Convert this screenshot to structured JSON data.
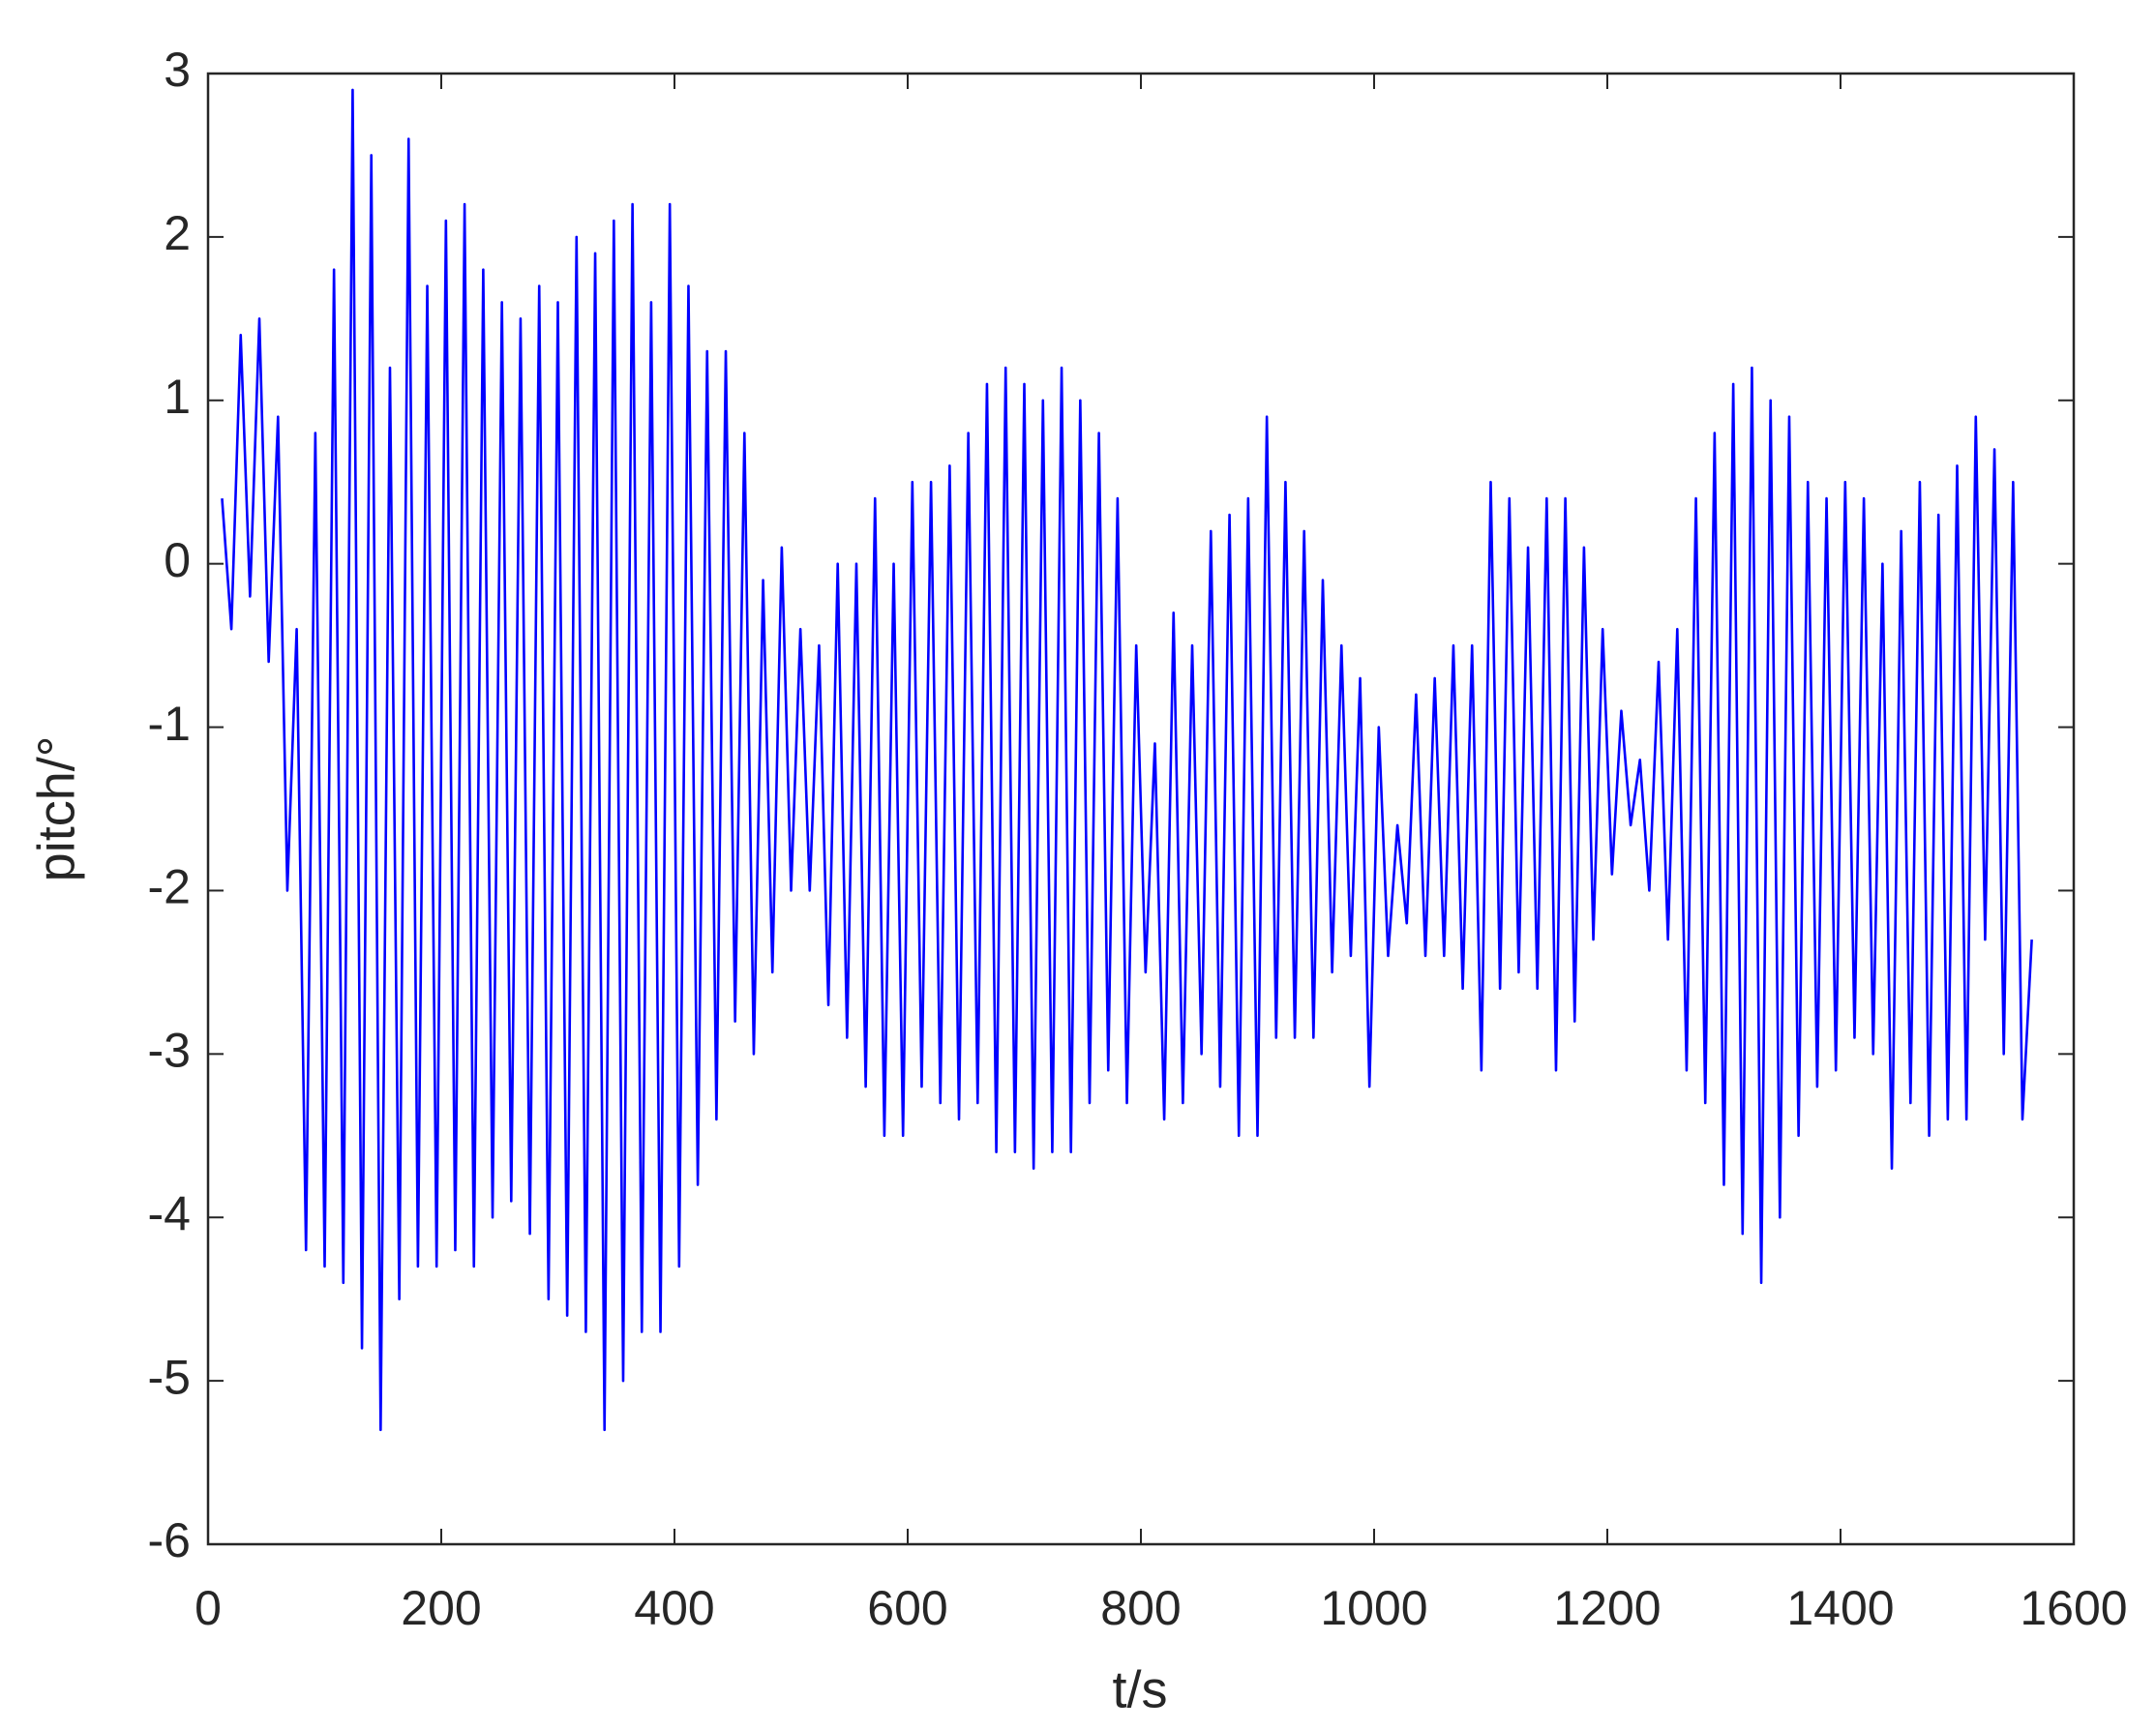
{
  "chart_data": {
    "type": "line",
    "xlabel": "t/s",
    "ylabel": "pitch/°",
    "color": "#0000ff",
    "xlim": [
      0,
      1600
    ],
    "xticks": [
      0,
      200,
      400,
      600,
      800,
      1000,
      1200,
      1400,
      1600
    ],
    "ylim": [
      -6,
      3
    ],
    "yticks": [
      -6,
      -5,
      -4,
      -3,
      -2,
      -1,
      0,
      1,
      2,
      3
    ],
    "grid": false,
    "x": [
      12,
      20,
      28,
      36,
      44,
      52,
      60,
      68,
      76,
      84,
      92,
      100,
      108,
      116,
      124,
      132,
      140,
      148,
      156,
      164,
      172,
      180,
      188,
      196,
      204,
      212,
      220,
      228,
      236,
      244,
      252,
      260,
      268,
      276,
      284,
      292,
      300,
      308,
      316,
      324,
      332,
      340,
      348,
      356,
      364,
      372,
      380,
      388,
      396,
      404,
      412,
      420,
      428,
      436,
      444,
      452,
      460,
      468,
      476,
      484,
      492,
      500,
      508,
      516,
      524,
      532,
      540,
      548,
      556,
      564,
      572,
      580,
      588,
      596,
      604,
      612,
      620,
      628,
      636,
      644,
      652,
      660,
      668,
      676,
      684,
      692,
      700,
      708,
      716,
      724,
      732,
      740,
      748,
      756,
      764,
      772,
      780,
      788,
      796,
      804,
      812,
      820,
      828,
      836,
      844,
      852,
      860,
      868,
      876,
      884,
      892,
      900,
      908,
      916,
      924,
      932,
      940,
      948,
      956,
      964,
      972,
      980,
      988,
      996,
      1004,
      1012,
      1020,
      1028,
      1036,
      1044,
      1052,
      1060,
      1068,
      1076,
      1084,
      1092,
      1100,
      1108,
      1116,
      1124,
      1132,
      1140,
      1148,
      1156,
      1164,
      1172,
      1180,
      1188,
      1196,
      1204,
      1212,
      1220,
      1228,
      1236,
      1244,
      1252,
      1260,
      1268,
      1276,
      1284,
      1292,
      1300,
      1308,
      1316,
      1324,
      1332,
      1340,
      1348,
      1356,
      1364,
      1372,
      1380,
      1388,
      1396,
      1404,
      1412,
      1420,
      1428,
      1436,
      1444,
      1452,
      1460,
      1468,
      1476,
      1484,
      1492,
      1500,
      1508,
      1516,
      1524,
      1532,
      1540,
      1548,
      1556,
      1564
    ],
    "values": [
      0.4,
      -0.4,
      1.4,
      -0.2,
      1.5,
      -0.6,
      0.9,
      -2.0,
      -0.4,
      -4.2,
      0.8,
      -4.3,
      1.8,
      -4.4,
      2.9,
      -4.8,
      2.5,
      -5.3,
      1.2,
      -4.5,
      2.6,
      -4.3,
      1.7,
      -4.3,
      2.1,
      -4.2,
      2.2,
      -4.3,
      1.8,
      -4.0,
      1.6,
      -3.9,
      1.5,
      -4.1,
      1.7,
      -4.5,
      1.6,
      -4.6,
      2.0,
      -4.7,
      1.9,
      -5.3,
      2.1,
      -5.0,
      2.2,
      -4.7,
      1.6,
      -4.7,
      2.2,
      -4.3,
      1.7,
      -3.8,
      1.3,
      -3.4,
      1.3,
      -2.8,
      0.8,
      -3.0,
      -0.1,
      -2.5,
      0.1,
      -2.0,
      -0.4,
      -2.0,
      -0.5,
      -2.7,
      0.0,
      -2.9,
      0.0,
      -3.2,
      0.4,
      -3.5,
      0.0,
      -3.5,
      0.5,
      -3.2,
      0.5,
      -3.3,
      0.6,
      -3.4,
      0.8,
      -3.3,
      1.1,
      -3.6,
      1.2,
      -3.6,
      1.1,
      -3.7,
      1.0,
      -3.6,
      1.2,
      -3.6,
      1.0,
      -3.3,
      0.8,
      -3.1,
      0.4,
      -3.3,
      -0.5,
      -2.5,
      -1.1,
      -3.4,
      -0.3,
      -3.3,
      -0.5,
      -3.0,
      0.2,
      -3.2,
      0.3,
      -3.5,
      0.4,
      -3.5,
      0.9,
      -2.9,
      0.5,
      -2.9,
      0.2,
      -2.9,
      -0.1,
      -2.5,
      -0.5,
      -2.4,
      -0.7,
      -3.2,
      -1.0,
      -2.4,
      -1.6,
      -2.2,
      -0.8,
      -2.4,
      -0.7,
      -2.4,
      -0.5,
      -2.6,
      -0.5,
      -3.1,
      0.5,
      -2.6,
      0.4,
      -2.5,
      0.1,
      -2.6,
      0.4,
      -3.1,
      0.4,
      -2.8,
      0.1,
      -2.3,
      -0.4,
      -1.9,
      -0.9,
      -1.6,
      -1.2,
      -2.0,
      -0.6,
      -2.3,
      -0.4,
      -3.1,
      0.4,
      -3.3,
      0.8,
      -3.8,
      1.1,
      -4.1,
      1.2,
      -4.4,
      1.0,
      -4.0,
      0.9,
      -3.5,
      0.5,
      -3.2,
      0.4,
      -3.1,
      0.5,
      -2.9,
      0.4,
      -3.0,
      0.0,
      -3.7,
      0.2,
      -3.3,
      0.5,
      -3.5,
      0.3,
      -3.4,
      0.6,
      -3.4,
      0.9,
      -2.3,
      0.7,
      -3.0,
      0.5,
      -3.4,
      -2.3
    ]
  }
}
